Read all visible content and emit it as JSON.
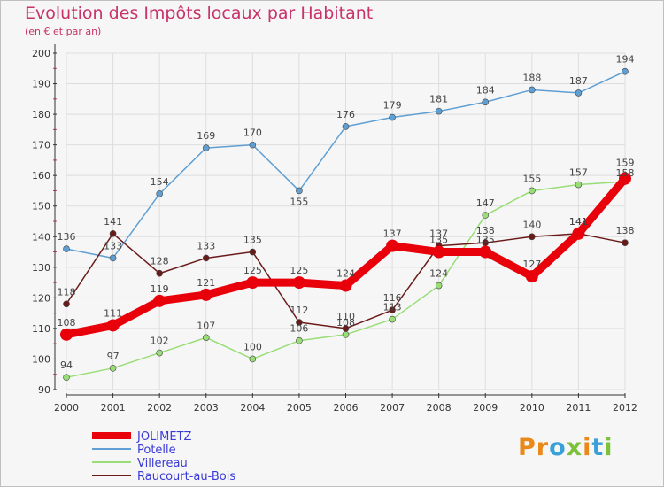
{
  "title": "Evolution des Impôts locaux par Habitant",
  "subtitle": "(en € et par an)",
  "logo": [
    "P",
    "r",
    "o",
    "x",
    "i",
    "t",
    "i"
  ],
  "chart_data": {
    "type": "line",
    "x": [
      "2000",
      "2001",
      "2002",
      "2003",
      "2004",
      "2005",
      "2006",
      "2007",
      "2008",
      "2009",
      "2010",
      "2011",
      "2012"
    ],
    "ylim": [
      90,
      200
    ],
    "yticks": [
      90,
      100,
      110,
      120,
      130,
      140,
      150,
      160,
      170,
      180,
      190,
      200
    ],
    "grid": true,
    "legend_position": "bottom-left",
    "series": [
      {
        "name": "JOLIMETZ",
        "color": "#e8000b",
        "values": [
          108,
          111,
          119,
          121,
          125,
          125,
          124,
          137,
          135,
          135,
          127,
          141,
          159
        ]
      },
      {
        "name": "Potelle",
        "color": "#5f9fd3",
        "values": [
          136,
          133,
          154,
          169,
          170,
          155,
          176,
          179,
          181,
          184,
          188,
          187,
          194
        ]
      },
      {
        "name": "Villereau",
        "color": "#99dd77",
        "values": [
          94,
          97,
          102,
          107,
          100,
          106,
          108,
          113,
          124,
          147,
          155,
          157,
          158
        ]
      },
      {
        "name": "Raucourt-au-Bois",
        "color": "#6b1a1a",
        "values": [
          118,
          141,
          128,
          133,
          135,
          112,
          110,
          116,
          137,
          138,
          140,
          141,
          138
        ]
      }
    ]
  }
}
